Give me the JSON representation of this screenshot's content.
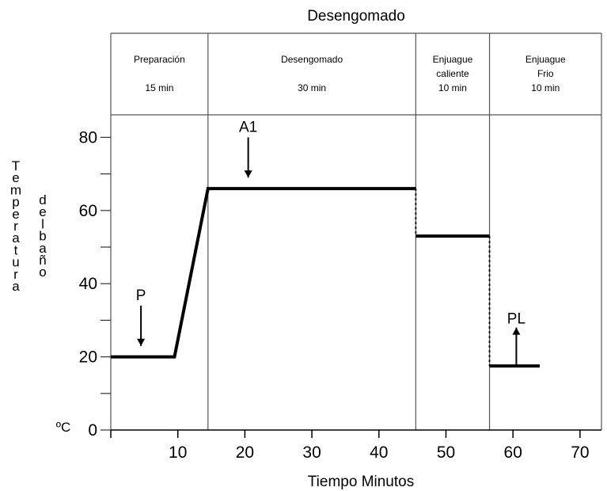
{
  "chart_data": {
    "type": "line",
    "title": "Desengomado",
    "xlabel": "Tiempo Minutos",
    "ylabel_words": [
      "Temperatura",
      "del baño"
    ],
    "y_unit": "ºC",
    "xlim": [
      0,
      70
    ],
    "ylim": [
      0,
      85
    ],
    "x_ticks": [
      10,
      20,
      30,
      40,
      50,
      60,
      70
    ],
    "y_ticks": [
      0,
      20,
      40,
      60,
      80
    ],
    "y_minor_ticks": [
      10,
      30,
      50,
      70
    ],
    "phases": [
      {
        "start": 0,
        "end": 14.5,
        "lines": [
          "Preparación",
          "",
          "15 min"
        ]
      },
      {
        "start": 14.5,
        "end": 45.5,
        "lines": [
          "Desengomado",
          "",
          "30 min"
        ]
      },
      {
        "start": 45.5,
        "end": 56.5,
        "lines": [
          "Enjuague",
          "caliente",
          "10 min"
        ]
      },
      {
        "start": 56.5,
        "end": 70,
        "lines": [
          "Enjuague",
          "Frio",
          "10 min"
        ]
      }
    ],
    "series": [
      {
        "points": [
          [
            0,
            20
          ],
          [
            9.5,
            20
          ],
          [
            14.5,
            66
          ],
          [
            45.5,
            66
          ]
        ]
      },
      {
        "points": [
          [
            45.5,
            53
          ],
          [
            56.5,
            53
          ]
        ]
      },
      {
        "points": [
          [
            56.5,
            17.5
          ],
          [
            64,
            17.5
          ]
        ]
      }
    ],
    "transitions": [
      {
        "x": 45.5,
        "from": 66,
        "to": 53
      },
      {
        "x": 56.5,
        "from": 53,
        "to": 17.5
      }
    ],
    "annotations": [
      {
        "label": "P",
        "x": 4.5,
        "y_top": 34,
        "y_bottom": 23,
        "direction": "down"
      },
      {
        "label": "A1",
        "x": 20.5,
        "y_top": 80,
        "y_bottom": 69,
        "direction": "down"
      },
      {
        "label": "PL",
        "x": 60.5,
        "y_top": 28,
        "y_bottom": 17.5,
        "direction": "up"
      }
    ]
  }
}
